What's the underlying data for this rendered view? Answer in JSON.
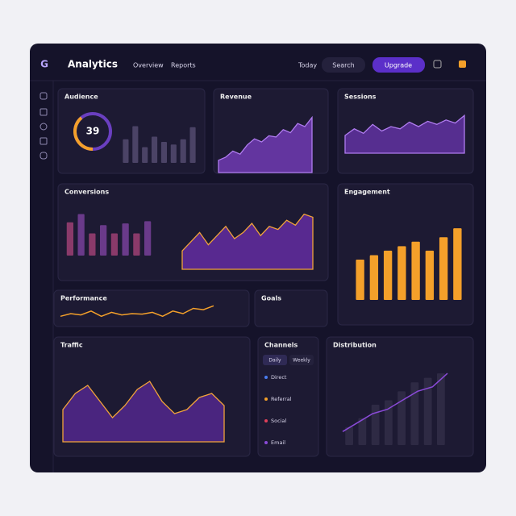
{
  "header": {
    "logo": "G",
    "title": "Analytics",
    "nav": [
      "Overview",
      "Reports"
    ],
    "link": "Today",
    "search": "Search",
    "button": "Upgrade"
  },
  "panels": [
    {
      "title": "Audience",
      "gauge": {
        "value": 39,
        "max": 100
      },
      "charts": [
        {
          "type": "bar",
          "values": [
            45,
            70,
            30,
            50,
            40,
            35,
            45,
            68
          ],
          "ylim": [
            0,
            80
          ],
          "color": "#4b4366"
        }
      ]
    },
    {
      "title": "Revenue",
      "charts": [
        {
          "type": "area",
          "values": [
            20,
            25,
            35,
            30,
            45,
            55,
            50,
            60,
            58,
            70,
            65,
            80,
            75,
            90
          ],
          "ylim": [
            0,
            100
          ],
          "color": "#7b3fc4"
        }
      ]
    },
    {
      "title": "Sessions",
      "charts": [
        {
          "type": "area",
          "values": [
            40,
            55,
            45,
            65,
            50,
            60,
            55,
            70,
            60,
            72,
            65,
            75,
            68,
            85
          ],
          "ylim": [
            0,
            100
          ],
          "color": "#6a35b0"
        }
      ]
    },
    {
      "title": "Conversions",
      "charts": [
        {
          "type": "bar",
          "values": [
            60,
            75,
            40,
            55,
            40,
            58,
            40,
            62
          ],
          "ylim": [
            0,
            80
          ],
          "colors": [
            "#8a3a6a",
            "#6a3a8a"
          ]
        },
        {
          "type": "area",
          "values": [
            30,
            45,
            60,
            40,
            55,
            70,
            50,
            60,
            75,
            55,
            70,
            65,
            80,
            72,
            90,
            85
          ],
          "ylim": [
            0,
            100
          ],
          "color": "#6c2fb0",
          "stroke": "#f2a33a"
        }
      ]
    },
    {
      "title": "Engagement",
      "charts": [
        {
          "type": "bar",
          "values": [
            45,
            50,
            55,
            60,
            65,
            55,
            70,
            80
          ],
          "ylim": [
            0,
            90
          ],
          "color": "#f4a02a"
        }
      ]
    },
    {
      "title": "Performance",
      "charts": [
        {
          "type": "line",
          "values": [
            30,
            40,
            35,
            50,
            30,
            45,
            35,
            40,
            38,
            45,
            30,
            50,
            40,
            60,
            55,
            70
          ],
          "ylim": [
            0,
            80
          ],
          "color": "#f4a02a"
        }
      ]
    },
    {
      "title": "Goals"
    },
    {
      "title": "Traffic",
      "charts": [
        {
          "type": "area",
          "values": [
            40,
            60,
            70,
            50,
            30,
            45,
            65,
            75,
            50,
            35,
            40,
            55,
            60,
            45
          ],
          "ylim": [
            0,
            100
          ],
          "color": "#5a2a9a",
          "stroke": "#f2a33a"
        }
      ]
    },
    {
      "title": "Channels",
      "tabs": [
        "Daily",
        "Weekly"
      ],
      "items": [
        "Direct",
        "Referral",
        "Social",
        "Email"
      ]
    },
    {
      "title": "Distribution",
      "charts": [
        {
          "type": "bar",
          "values": [
            20,
            30,
            45,
            50,
            60,
            70,
            75,
            80
          ],
          "ylim": [
            0,
            90
          ],
          "color": "#2e2a44"
        },
        {
          "type": "line",
          "values": [
            15,
            25,
            35,
            40,
            50,
            60,
            65,
            80
          ],
          "ylim": [
            0,
            90
          ],
          "color": "#8a4ad8"
        }
      ]
    }
  ]
}
